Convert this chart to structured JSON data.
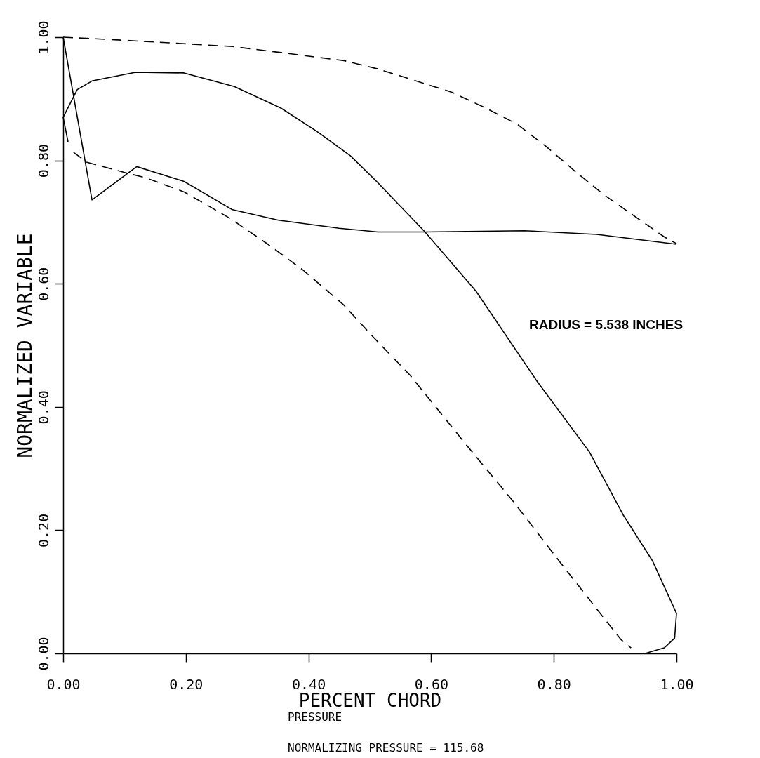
{
  "chart_data": {
    "type": "line",
    "xlabel": "PERCENT CHORD",
    "ylabel": "NORMALIZED VARIABLE",
    "annotations": [
      "RADIUS = 5.538 INCHES",
      "PRESSURE",
      "NORMALIZING PRESSURE = 115.68"
    ],
    "xlim": [
      0,
      1
    ],
    "ylim": [
      0,
      1
    ],
    "xticks": [
      {
        "value": 0,
        "label": "0.00"
      },
      {
        "value": 0.2,
        "label": "0.20"
      },
      {
        "value": 0.4,
        "label": "0.40"
      },
      {
        "value": 0.6,
        "label": "0.60"
      },
      {
        "value": 0.8,
        "label": "0.80"
      },
      {
        "value": 1,
        "label": "1.00"
      }
    ],
    "yticks": [
      {
        "value": 0,
        "label": "0.00"
      },
      {
        "value": 0.2,
        "label": "0.20"
      },
      {
        "value": 0.4,
        "label": "0.40"
      },
      {
        "value": 0.6,
        "label": "0.60"
      },
      {
        "value": 0.8,
        "label": "0.80"
      },
      {
        "value": 1,
        "label": "1.00"
      }
    ],
    "grid": false,
    "marker": "none",
    "series": [
      {
        "color": "#000000",
        "line_style": "dashed",
        "x": [
          0,
          0.1,
          0.276,
          0.458,
          0.515,
          0.633,
          0.689,
          0.74,
          0.787,
          0.834,
          0.882,
          0.931,
          0.98,
          1.0
        ],
        "values": [
          1.0,
          0.995,
          0.985,
          0.962,
          0.948,
          0.911,
          0.885,
          0.859,
          0.823,
          0.783,
          0.744,
          0.71,
          0.676,
          0.665
        ]
      },
      {
        "color": "#000000",
        "line_style": "solid",
        "x": [
          0.008,
          0,
          0.023,
          0.047,
          0.118,
          0.197,
          0.279,
          0.355,
          0.414,
          0.469,
          0.513,
          0.59,
          0.673,
          0.771,
          0.858,
          0.913,
          0.961,
          1.0,
          0.997,
          0.98,
          0.949
        ],
        "values": [
          0.83,
          0.87,
          0.915,
          0.929,
          0.943,
          0.942,
          0.92,
          0.885,
          0.847,
          0.807,
          0.764,
          0.684,
          0.588,
          0.444,
          0.327,
          0.225,
          0.15,
          0.065,
          0.025,
          0.009,
          0.0
        ]
      },
      {
        "color": "#000000",
        "line_style": "dashed",
        "x": [
          0.017,
          0.039,
          0.106,
          0.134,
          0.197,
          0.272,
          0.331,
          0.39,
          0.458,
          0.505,
          0.566,
          0.661,
          0.736,
          0.811,
          0.882,
          0.91,
          0.926
        ],
        "values": [
          0.813,
          0.797,
          0.779,
          0.772,
          0.749,
          0.706,
          0.666,
          0.623,
          0.565,
          0.514,
          0.451,
          0.334,
          0.244,
          0.147,
          0.057,
          0.022,
          0.009
        ]
      },
      {
        "color": "#000000",
        "line_style": "solid",
        "x": [
          0,
          0.047,
          0.12,
          0.197,
          0.276,
          0.351,
          0.45,
          0.513,
          0.59,
          0.752,
          0.87,
          1.0
        ],
        "values": [
          1.0,
          0.736,
          0.79,
          0.766,
          0.72,
          0.703,
          0.69,
          0.684,
          0.684,
          0.686,
          0.68,
          0.664
        ]
      }
    ]
  }
}
